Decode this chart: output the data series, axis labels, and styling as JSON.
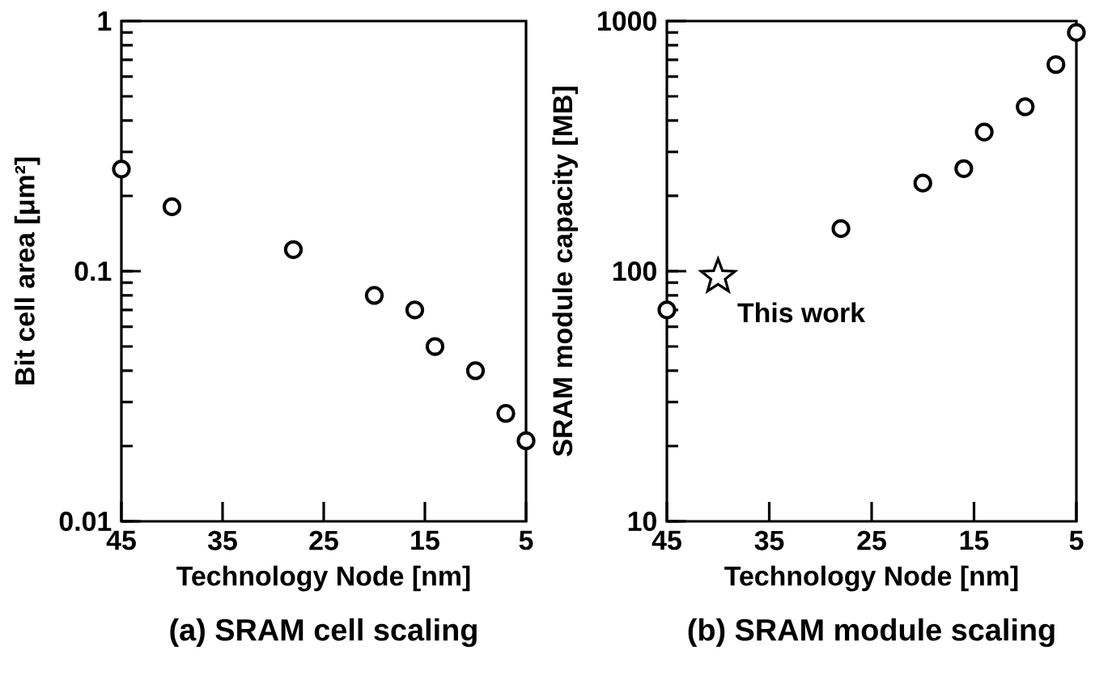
{
  "chart_data": [
    {
      "type": "scatter",
      "title": "(a) SRAM cell scaling",
      "xlabel": "Technology Node [nm]",
      "ylabel": "Bit cell area [μm²]",
      "log": "y",
      "xlim": [
        45,
        5
      ],
      "ylim": [
        0.01,
        1
      ],
      "xticks": [
        45,
        35,
        25,
        15,
        5
      ],
      "yticks": [
        0.01,
        0.1,
        1
      ],
      "marker": "circle",
      "series": [
        {
          "color": "#000000",
          "x": [
            45,
            40,
            28,
            20,
            16,
            14,
            10,
            7,
            5
          ],
          "values": [
            0.256,
            0.181,
            0.122,
            0.08,
            0.07,
            0.05,
            0.04,
            0.027,
            0.021
          ]
        }
      ]
    },
    {
      "type": "scatter",
      "title": "(b) SRAM module scaling",
      "xlabel": "Technology Node [nm]",
      "ylabel": "SRAM module capacity [MB]",
      "log": "y",
      "xlim": [
        45,
        5
      ],
      "ylim": [
        10,
        1000
      ],
      "xticks": [
        45,
        35,
        25,
        15,
        5
      ],
      "yticks": [
        10,
        100,
        1000
      ],
      "marker": "circle",
      "annotations": [
        {
          "text": "This work",
          "x": 40,
          "y": 95
        }
      ],
      "series": [
        {
          "color": "#000000",
          "x": [
            45,
            28,
            20,
            16,
            14,
            10,
            7,
            5
          ],
          "values": [
            70,
            148,
            225,
            257,
            360,
            454,
            670,
            900
          ]
        },
        {
          "color": "#000000",
          "marker": "star",
          "x": [
            40
          ],
          "values": [
            95
          ]
        }
      ]
    }
  ]
}
